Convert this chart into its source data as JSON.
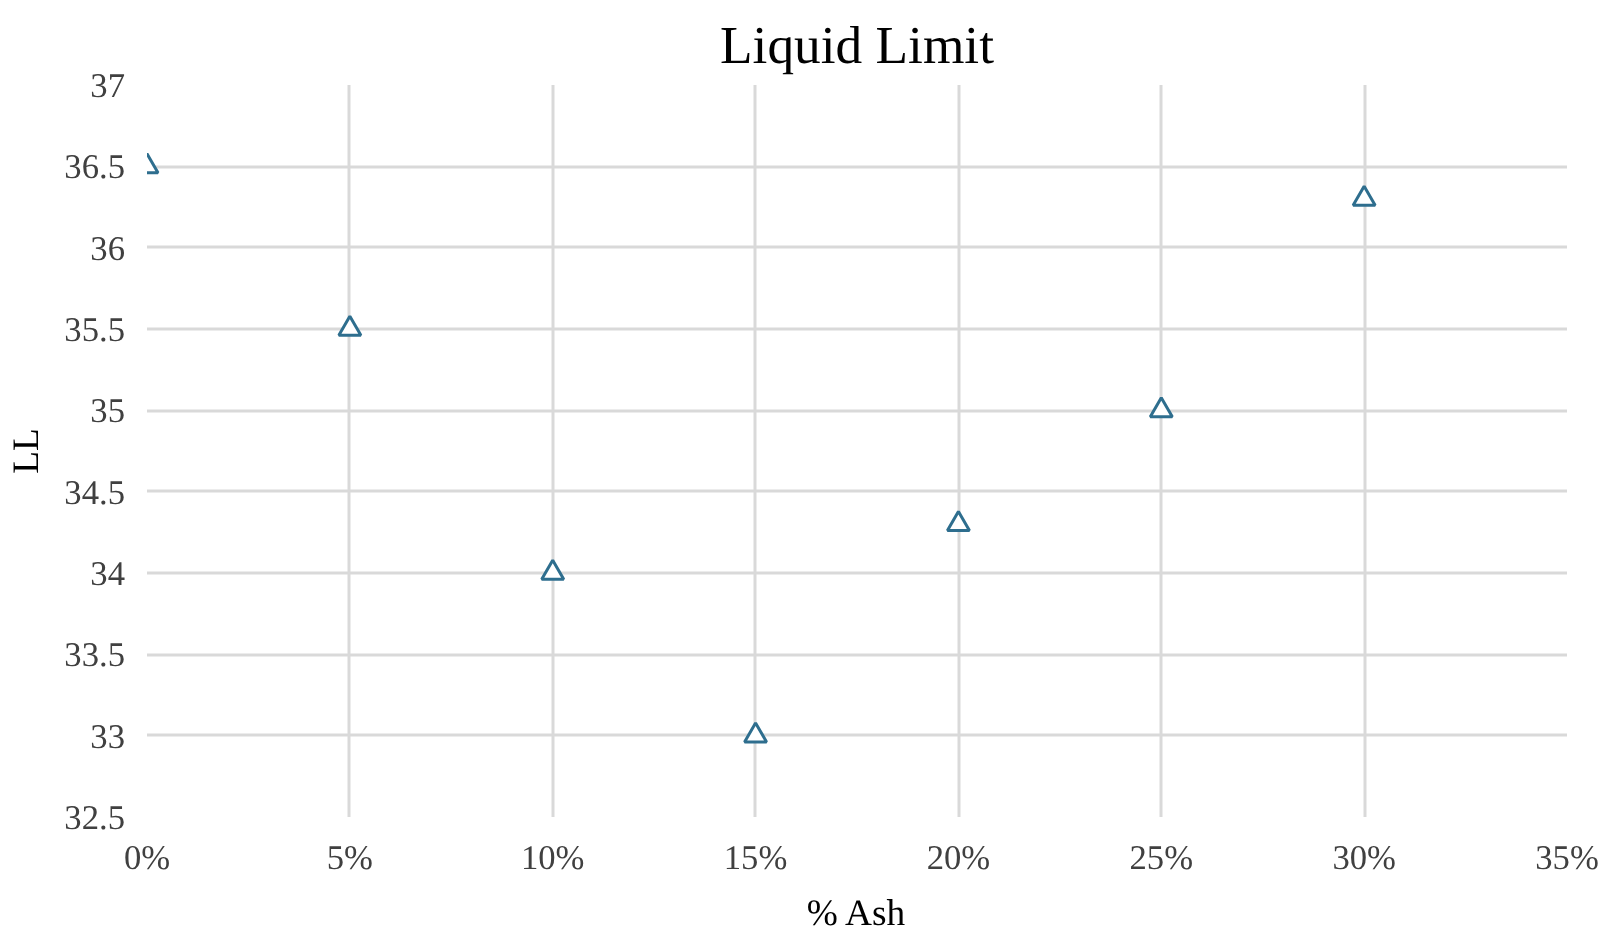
{
  "chart_data": {
    "type": "scatter",
    "title": "Liquid Limit",
    "xlabel": "% Ash",
    "ylabel": "LL",
    "x": [
      0,
      5,
      10,
      15,
      20,
      25,
      30
    ],
    "series": [
      {
        "color": "#2e6e8e",
        "values": [
          36.5,
          35.5,
          34,
          33,
          34.3,
          35,
          36.3
        ]
      }
    ],
    "xlim": [
      0,
      35
    ],
    "ylim": [
      32.5,
      37
    ],
    "xticks": [
      {
        "value": 0,
        "label": "0%"
      },
      {
        "value": 5,
        "label": "5%"
      },
      {
        "value": 10,
        "label": "10%"
      },
      {
        "value": 15,
        "label": "15%"
      },
      {
        "value": 20,
        "label": "20%"
      },
      {
        "value": 25,
        "label": "25%"
      },
      {
        "value": 30,
        "label": "30%"
      },
      {
        "value": 35,
        "label": "35%"
      }
    ],
    "yticks": [
      32.5,
      33,
      33.5,
      34,
      34.5,
      35,
      35.5,
      36,
      36.5,
      37
    ],
    "grid": true,
    "marker": "triangle"
  }
}
